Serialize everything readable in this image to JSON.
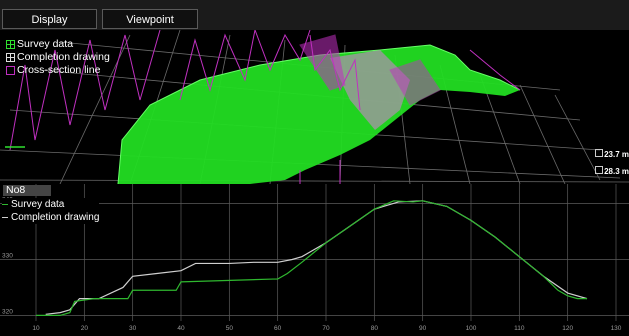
{
  "toolbar": {
    "buttons": [
      {
        "label": "Display"
      },
      {
        "label": "Viewpoint"
      }
    ]
  },
  "view3d": {
    "legend": [
      {
        "label": "Survey data",
        "icon": "survey-grid-icon",
        "color": "#2fe02f"
      },
      {
        "label": "Completion drawing",
        "icon": "completion-grid-icon",
        "color": "#dddddd"
      },
      {
        "label": "Cross-section line",
        "icon": "cross-section-icon",
        "color": "#c030c0"
      }
    ],
    "dimensions": [
      {
        "label": "23.7 m"
      },
      {
        "label": "28.3 m"
      }
    ]
  },
  "section": {
    "title": "No8",
    "legend": [
      {
        "label": "Survey data",
        "color": "#2fb82f"
      },
      {
        "label": "Completion drawing",
        "color": "#cfcfcf"
      }
    ],
    "y_ticks": [
      "340",
      "330",
      "320"
    ],
    "x_ticks": [
      "10",
      "20",
      "30",
      "40",
      "50",
      "60",
      "70",
      "80",
      "90",
      "100",
      "110",
      "120",
      "130"
    ]
  },
  "chart_data": {
    "type": "line",
    "x_range": [
      10,
      130
    ],
    "y_range": [
      319,
      341
    ],
    "series": [
      {
        "name": "Survey data",
        "color": "#2fb82f",
        "x": [
          10,
          15,
          17,
          18,
          22,
          29,
          30,
          39,
          40,
          59,
          60,
          62,
          65,
          70,
          75,
          80,
          84,
          88,
          90,
          95,
          100,
          105,
          110,
          115,
          118,
          120,
          122,
          124
        ],
        "y": [
          320,
          320,
          320.5,
          322.5,
          323,
          323,
          324.5,
          324.5,
          326,
          326.5,
          326.5,
          327.5,
          329.5,
          333,
          336,
          339,
          340.5,
          340.3,
          340.5,
          339.5,
          337,
          334,
          330.5,
          327,
          324.5,
          323.5,
          323,
          323
        ]
      },
      {
        "name": "Completion drawing",
        "color": "#cfcfcf",
        "x": [
          12,
          15,
          17,
          19,
          23,
          28,
          30,
          35,
          40,
          43,
          50,
          55,
          60,
          63,
          65,
          70,
          75,
          80,
          85,
          90,
          95,
          100,
          105,
          110,
          115,
          120,
          124
        ],
        "y": [
          320.2,
          320.5,
          321,
          323,
          323,
          325,
          327,
          327.5,
          328,
          329.3,
          329.3,
          329.5,
          329.5,
          330,
          330.5,
          333,
          336,
          339,
          340.3,
          340.5,
          339.5,
          337,
          334,
          330.5,
          327,
          324,
          323
        ]
      }
    ]
  }
}
